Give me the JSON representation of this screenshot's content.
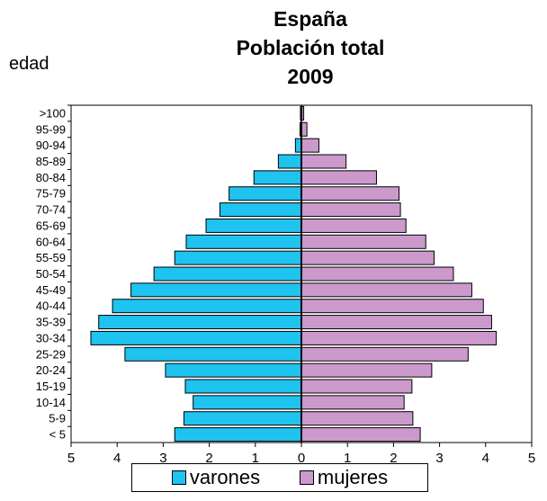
{
  "chart_data": {
    "type": "bar",
    "orientation": "horizontal",
    "title_lines": [
      "España",
      "Población total",
      "2009"
    ],
    "ylabel": "edad",
    "xlabel": "",
    "categories": [
      ">100",
      "95-99",
      "90-94",
      "85-89",
      "80-84",
      "75-79",
      "70-74",
      "65-69",
      "60-64",
      "55-59",
      "50-54",
      "45-49",
      "40-44",
      "35-39",
      "30-34",
      "25-29",
      "20-24",
      "15-19",
      "10-14",
      "5-9",
      "< 5"
    ],
    "series": [
      {
        "name": "varones",
        "color": "#1ec3f0",
        "values": [
          0.02,
          0.03,
          0.13,
          0.5,
          1.03,
          1.57,
          1.77,
          2.07,
          2.5,
          2.75,
          3.2,
          3.7,
          4.1,
          4.4,
          4.57,
          3.83,
          2.95,
          2.52,
          2.35,
          2.55,
          2.75
        ]
      },
      {
        "name": "mujeres",
        "color": "#cc99cc",
        "values": [
          0.05,
          0.12,
          0.38,
          0.97,
          1.63,
          2.12,
          2.15,
          2.27,
          2.7,
          2.88,
          3.3,
          3.7,
          3.95,
          4.13,
          4.23,
          3.62,
          2.83,
          2.4,
          2.23,
          2.42,
          2.58
        ]
      }
    ],
    "xlim": [
      -5,
      5
    ],
    "xticks": [
      -5,
      -4,
      -3,
      -2,
      -1,
      0,
      1,
      2,
      3,
      4,
      5
    ],
    "xtick_labels": [
      "5",
      "4",
      "3",
      "2",
      "1",
      "0",
      "1",
      "2",
      "3",
      "4",
      "5"
    ],
    "grid": false,
    "legend_position": "bottom"
  }
}
